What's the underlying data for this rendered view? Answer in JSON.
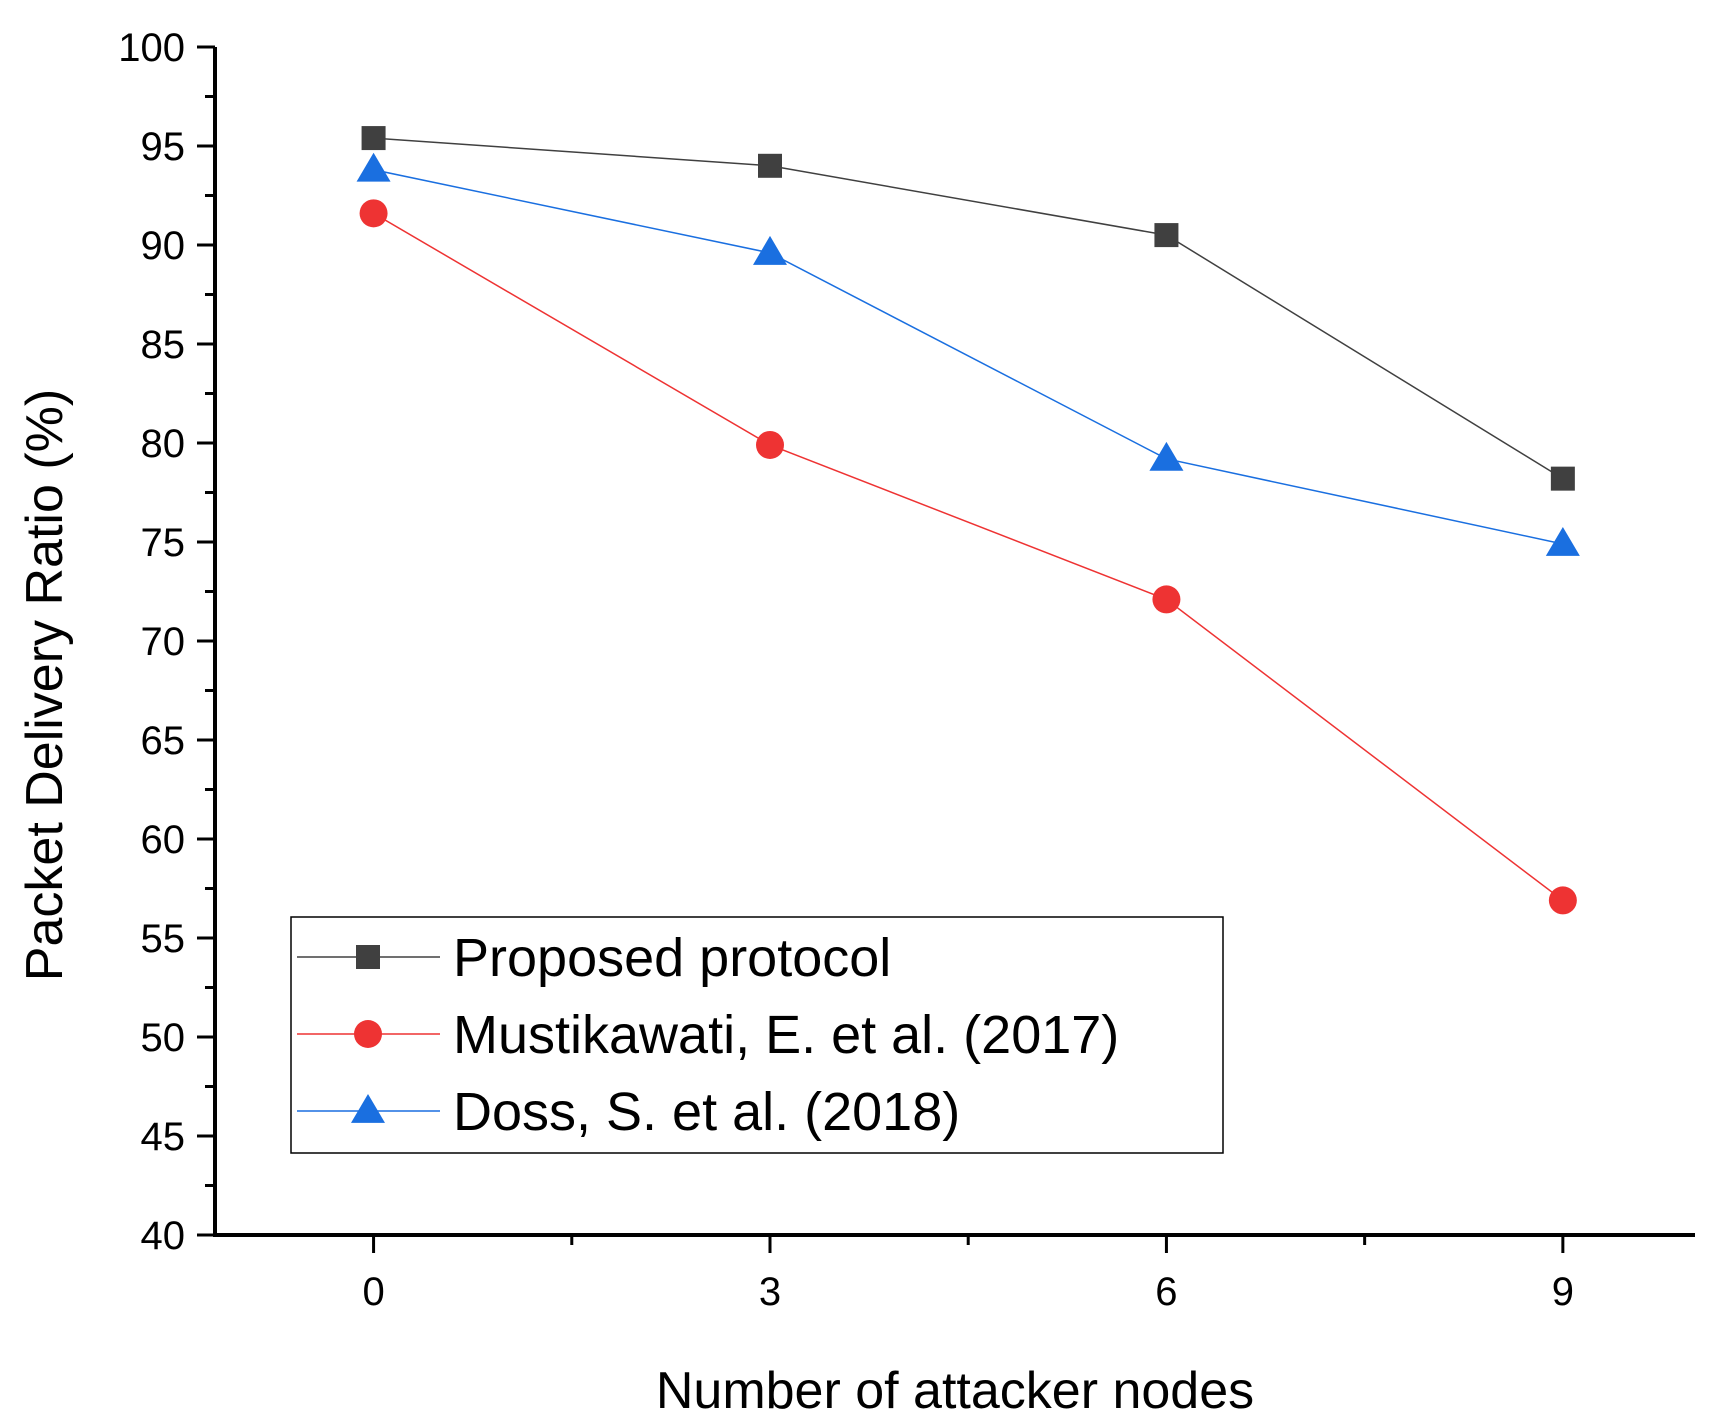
{
  "chart_data": {
    "type": "line",
    "title": "",
    "xlabel": "Number of attacker nodes",
    "ylabel": "Packet Delivery Ratio (%)",
    "x": [
      0,
      3,
      6,
      9
    ],
    "xlim": [
      -1.2,
      10
    ],
    "ylim": [
      40,
      100
    ],
    "xticks": [
      "0",
      "3",
      "6",
      "9"
    ],
    "yticks": [
      "40",
      "45",
      "50",
      "55",
      "60",
      "65",
      "70",
      "75",
      "80",
      "85",
      "90",
      "95",
      "100"
    ],
    "legend_position": "bottom-left",
    "series": [
      {
        "name": "Proposed protocol",
        "values": [
          95.4,
          94.0,
          90.5,
          78.2
        ],
        "color": "#404040",
        "marker": "square"
      },
      {
        "name": "Mustikawati, E. et al. (2017)",
        "values": [
          91.6,
          79.9,
          72.1,
          56.9
        ],
        "color": "#ee3333",
        "marker": "circle"
      },
      {
        "name": "Doss, S. et al. (2018)",
        "values": [
          93.8,
          89.6,
          79.2,
          74.9
        ],
        "color": "#1a6fe0",
        "marker": "triangle"
      }
    ]
  }
}
